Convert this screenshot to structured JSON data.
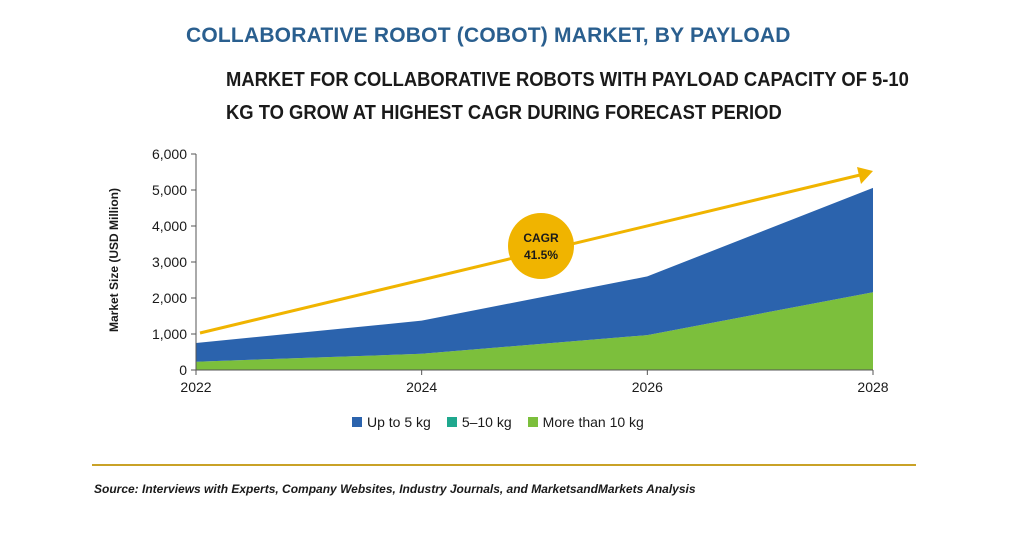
{
  "header": {
    "title": "COLLABORATIVE ROBOT (COBOT) MARKET, BY PAYLOAD",
    "subtitle": "MARKET FOR COLLABORATIVE ROBOTS WITH PAYLOAD CAPACITY OF 5-10 KG TO GROW AT HIGHEST CAGR DURING FORECAST PERIOD"
  },
  "colors": {
    "title": "#2a5f8f",
    "up_to_5kg": "#2b63ad",
    "five_to_ten_kg": "#1fa88e",
    "more_than_10kg": "#7cbf3c",
    "trend_arrow": "#f0b400",
    "cagr_badge": "#f0b400",
    "source_rule": "#c9a227"
  },
  "cagr": {
    "label": "CAGR",
    "value": "41.5%"
  },
  "source": "Source: Interviews with Experts, Company Websites, Industry Journals, and MarketsandMarkets Analysis",
  "chart_data": {
    "type": "area",
    "title": "",
    "ylabel": "Market Size (USD Million)",
    "xlabel": "",
    "x": [
      2022,
      2024,
      2026,
      2028
    ],
    "x_tick_labels": [
      "2022",
      "2024",
      "2026",
      "2028"
    ],
    "ylim": [
      0,
      6000
    ],
    "y_ticks": [
      0,
      1000,
      2000,
      3000,
      4000,
      5000,
      6000
    ],
    "y_tick_labels": [
      "0",
      "1,000",
      "2,000",
      "3,000",
      "4,000",
      "5,000",
      "6,000"
    ],
    "stacked": true,
    "grid": false,
    "legend_position": "bottom",
    "series": [
      {
        "name": "More than 10 kg",
        "values": [
          230,
          450,
          970,
          2160
        ]
      },
      {
        "name": "5–10 kg",
        "values": [
          0,
          0,
          0,
          0
        ]
      },
      {
        "name": "Up to 5 kg",
        "values": [
          520,
          920,
          1630,
          2900
        ]
      }
    ],
    "legend": [
      "Up to 5 kg",
      "5–10 kg",
      "More than 10 kg"
    ]
  }
}
